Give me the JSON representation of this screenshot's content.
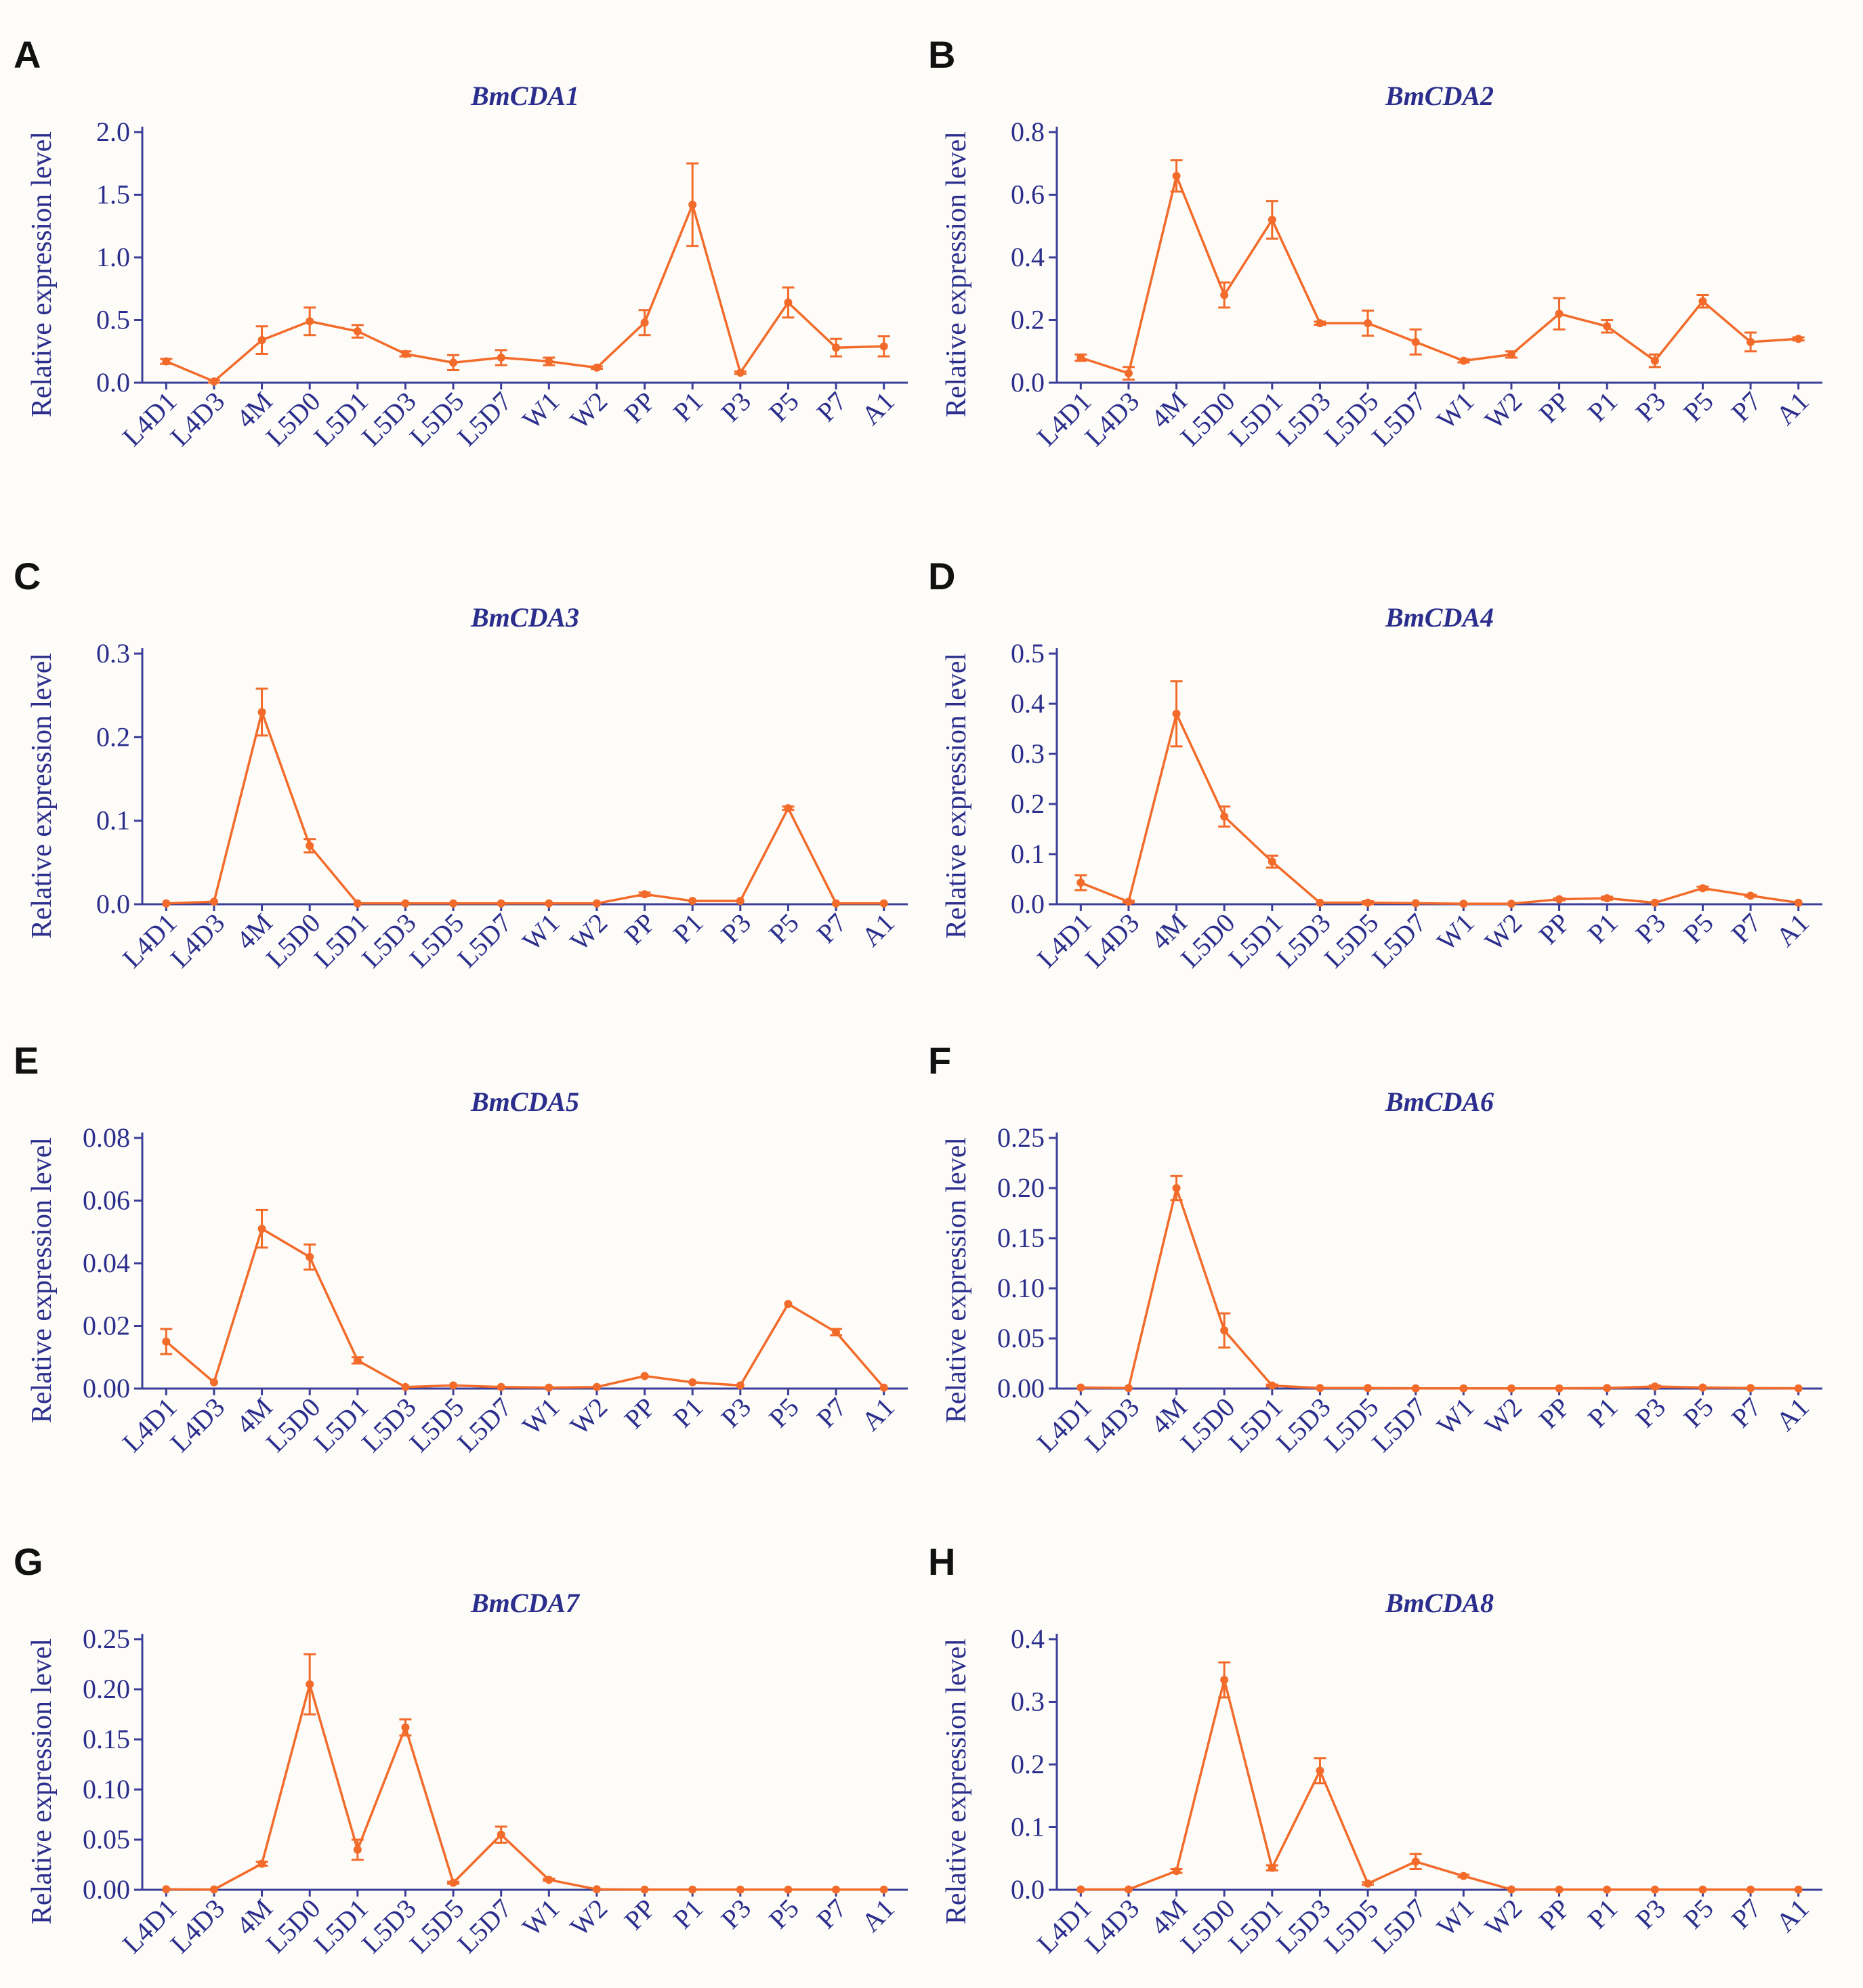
{
  "colors": {
    "line": "#f26b2a",
    "text": "#2b2e8c",
    "axis": "#3b3f99"
  },
  "categories": [
    "L4D1",
    "L4D3",
    "4M",
    "L5D0",
    "L5D1",
    "L5D3",
    "L5D5",
    "L5D7",
    "W1",
    "W2",
    "PP",
    "P1",
    "P3",
    "P5",
    "P7",
    "A1"
  ],
  "chart_data": [
    {
      "panel": "A",
      "type": "line",
      "title": "BmCDA1",
      "ylabel": "Relative expression level",
      "ylim": [
        0,
        2.0
      ],
      "yticks": [
        "0.0",
        "0.5",
        "1.0",
        "1.5",
        "2.0"
      ],
      "ytick_values": [
        0,
        0.5,
        1.0,
        1.5,
        2.0
      ],
      "values": [
        0.17,
        0.01,
        0.34,
        0.49,
        0.41,
        0.23,
        0.16,
        0.2,
        0.17,
        0.12,
        0.48,
        1.42,
        0.08,
        0.64,
        0.28,
        0.29
      ],
      "errors": [
        0.02,
        0.01,
        0.11,
        0.11,
        0.05,
        0.02,
        0.06,
        0.06,
        0.03,
        0.01,
        0.1,
        0.33,
        0.01,
        0.12,
        0.07,
        0.08
      ]
    },
    {
      "panel": "B",
      "type": "line",
      "title": "BmCDA2",
      "ylabel": "Relative expression level",
      "ylim": [
        0,
        0.8
      ],
      "yticks": [
        "0.0",
        "0.2",
        "0.4",
        "0.6",
        "0.8"
      ],
      "ytick_values": [
        0,
        0.2,
        0.4,
        0.6,
        0.8
      ],
      "values": [
        0.08,
        0.03,
        0.66,
        0.28,
        0.52,
        0.19,
        0.19,
        0.13,
        0.07,
        0.09,
        0.22,
        0.18,
        0.07,
        0.26,
        0.13,
        0.14
      ],
      "errors": [
        0.01,
        0.02,
        0.05,
        0.04,
        0.06,
        0.005,
        0.04,
        0.04,
        0.005,
        0.01,
        0.05,
        0.02,
        0.02,
        0.02,
        0.03,
        0.005
      ]
    },
    {
      "panel": "C",
      "type": "line",
      "title": "BmCDA3",
      "ylabel": "Relative expression level",
      "ylim": [
        0,
        0.3
      ],
      "yticks": [
        "0.0",
        "0.1",
        "0.2",
        "0.3"
      ],
      "ytick_values": [
        0,
        0.1,
        0.2,
        0.3
      ],
      "values": [
        0.001,
        0.003,
        0.23,
        0.07,
        0.001,
        0.001,
        0.001,
        0.001,
        0.001,
        0.001,
        0.012,
        0.004,
        0.004,
        0.115,
        0.001,
        0.001
      ],
      "errors": [
        0,
        0,
        0.028,
        0.008,
        0,
        0,
        0,
        0,
        0,
        0,
        0.002,
        0,
        0,
        0.002,
        0,
        0
      ]
    },
    {
      "panel": "D",
      "type": "line",
      "title": "BmCDA4",
      "ylabel": "Relative expression level",
      "ylim": [
        0,
        0.5
      ],
      "yticks": [
        "0.0",
        "0.1",
        "0.2",
        "0.3",
        "0.4",
        "0.5"
      ],
      "ytick_values": [
        0,
        0.1,
        0.2,
        0.3,
        0.4,
        0.5
      ],
      "values": [
        0.043,
        0.005,
        0.38,
        0.175,
        0.085,
        0.003,
        0.003,
        0.002,
        0.001,
        0.001,
        0.01,
        0.012,
        0.003,
        0.032,
        0.017,
        0.003
      ],
      "errors": [
        0.015,
        0.002,
        0.065,
        0.02,
        0.012,
        0,
        0.003,
        0,
        0,
        0,
        0.002,
        0.003,
        0,
        0.003,
        0.002,
        0
      ]
    },
    {
      "panel": "E",
      "type": "line",
      "title": "BmCDA5",
      "ylabel": "Relative expression level",
      "ylim": [
        0,
        0.08
      ],
      "yticks": [
        "0.00",
        "0.02",
        "0.04",
        "0.06",
        "0.08"
      ],
      "ytick_values": [
        0,
        0.02,
        0.04,
        0.06,
        0.08
      ],
      "values": [
        0.015,
        0.002,
        0.051,
        0.042,
        0.009,
        0.0005,
        0.001,
        0.0005,
        0.0003,
        0.0005,
        0.004,
        0.002,
        0.001,
        0.027,
        0.018,
        0.0003
      ],
      "errors": [
        0.004,
        0,
        0.006,
        0.004,
        0.001,
        0,
        0,
        0,
        0,
        0,
        0,
        0,
        0,
        0,
        0.001,
        0
      ]
    },
    {
      "panel": "F",
      "type": "line",
      "title": "BmCDA6",
      "ylabel": "Relative expression level",
      "ylim": [
        0,
        0.25
      ],
      "yticks": [
        "0.00",
        "0.05",
        "0.10",
        "0.15",
        "0.20",
        "0.25"
      ],
      "ytick_values": [
        0,
        0.05,
        0.1,
        0.15,
        0.2,
        0.25
      ],
      "values": [
        0.001,
        0.0005,
        0.2,
        0.058,
        0.003,
        0.0005,
        0.0005,
        0.0002,
        0.0002,
        0.0002,
        0.0002,
        0.0005,
        0.002,
        0.001,
        0.0005,
        0.0002
      ],
      "errors": [
        0,
        0,
        0.012,
        0.017,
        0.001,
        0,
        0,
        0,
        0,
        0,
        0,
        0,
        0.001,
        0,
        0,
        0
      ]
    },
    {
      "panel": "G",
      "type": "line",
      "title": "BmCDA7",
      "ylabel": "Relative expression level",
      "ylim": [
        0,
        0.25
      ],
      "yticks": [
        "0.00",
        "0.05",
        "0.10",
        "0.15",
        "0.20",
        "0.25"
      ],
      "ytick_values": [
        0,
        0.05,
        0.1,
        0.15,
        0.2,
        0.25
      ],
      "values": [
        0.0005,
        0.0003,
        0.026,
        0.205,
        0.04,
        0.162,
        0.007,
        0.055,
        0.01,
        0.0005,
        0.0002,
        0.0002,
        0.0002,
        0.0002,
        0.0002,
        0.0002
      ],
      "errors": [
        0,
        0,
        0.002,
        0.03,
        0.01,
        0.008,
        0.001,
        0.008,
        0.001,
        0,
        0,
        0,
        0,
        0,
        0,
        0
      ]
    },
    {
      "panel": "H",
      "type": "line",
      "title": "BmCDA8",
      "ylabel": "Relative expression level",
      "ylim": [
        0,
        0.4
      ],
      "yticks": [
        "0.0",
        "0.1",
        "0.2",
        "0.3",
        "0.4"
      ],
      "ytick_values": [
        0,
        0.1,
        0.2,
        0.3,
        0.4
      ],
      "values": [
        0.0005,
        0.0005,
        0.03,
        0.335,
        0.035,
        0.19,
        0.01,
        0.045,
        0.022,
        0.0005,
        0.0003,
        0.0003,
        0.0003,
        0.0003,
        0.0003,
        0.0003
      ],
      "errors": [
        0,
        0,
        0.003,
        0.028,
        0.004,
        0.02,
        0.002,
        0.012,
        0.002,
        0,
        0,
        0,
        0,
        0,
        0,
        0
      ]
    }
  ]
}
